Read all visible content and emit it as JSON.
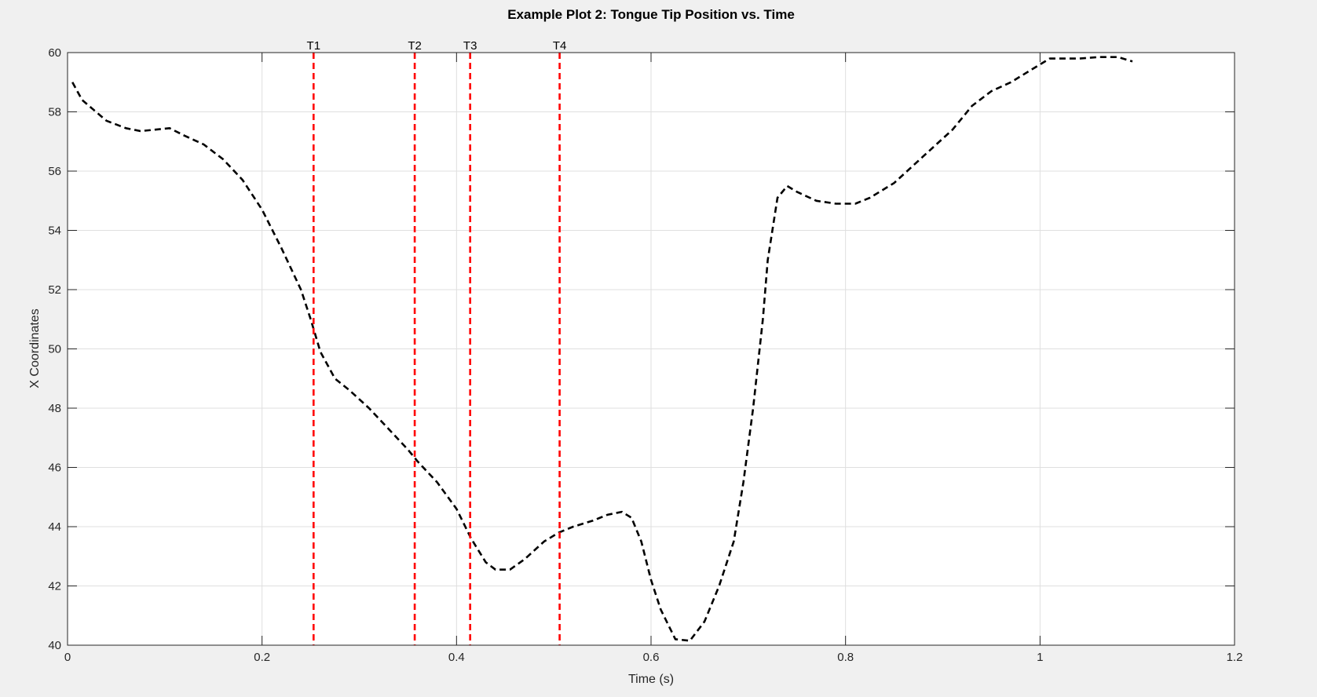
{
  "chart_data": {
    "type": "line",
    "title": "Example Plot 2: Tongue Tip Position vs. Time",
    "xlabel": "Time (s)",
    "ylabel": "X Coordinates",
    "xlim": [
      0,
      1.2
    ],
    "ylim": [
      40,
      60
    ],
    "grid": true,
    "x_ticks": [
      "0",
      "0.2",
      "0.4",
      "0.6",
      "0.8",
      "1",
      "1.2"
    ],
    "y_ticks": [
      "40",
      "42",
      "44",
      "46",
      "48",
      "50",
      "52",
      "54",
      "56",
      "58",
      "60"
    ],
    "series": [
      {
        "line_style": "dashed",
        "color": "#000000",
        "x": [
          0.005,
          0.015,
          0.04,
          0.06,
          0.075,
          0.09,
          0.105,
          0.12,
          0.14,
          0.16,
          0.18,
          0.2,
          0.22,
          0.24,
          0.25,
          0.26,
          0.275,
          0.29,
          0.31,
          0.33,
          0.35,
          0.36,
          0.38,
          0.4,
          0.415,
          0.43,
          0.44,
          0.455,
          0.47,
          0.49,
          0.505,
          0.52,
          0.54,
          0.555,
          0.57,
          0.58,
          0.59,
          0.6,
          0.61,
          0.625,
          0.64,
          0.655,
          0.67,
          0.685,
          0.695,
          0.705,
          0.715,
          0.72,
          0.73,
          0.74,
          0.75,
          0.77,
          0.79,
          0.81,
          0.825,
          0.85,
          0.88,
          0.91,
          0.93,
          0.95,
          0.97,
          0.99,
          1.01,
          1.04,
          1.06,
          1.08,
          1.095
        ],
        "y": [
          59.0,
          58.4,
          57.7,
          57.45,
          57.35,
          57.4,
          57.45,
          57.2,
          56.9,
          56.4,
          55.7,
          54.7,
          53.4,
          52.0,
          51.0,
          49.9,
          49.0,
          48.6,
          48.0,
          47.3,
          46.6,
          46.2,
          45.5,
          44.6,
          43.6,
          42.8,
          42.55,
          42.55,
          42.9,
          43.5,
          43.8,
          44.0,
          44.2,
          44.4,
          44.5,
          44.3,
          43.5,
          42.2,
          41.2,
          40.2,
          40.15,
          40.8,
          42.0,
          43.5,
          45.5,
          48.0,
          51.0,
          53.0,
          55.1,
          55.5,
          55.3,
          55.0,
          54.9,
          54.9,
          55.1,
          55.6,
          56.5,
          57.4,
          58.2,
          58.7,
          59.0,
          59.4,
          59.8,
          59.8,
          59.85,
          59.85,
          59.7
        ]
      }
    ],
    "markers": [
      {
        "label": "T1",
        "x": 0.253,
        "color": "#ff0000",
        "line_style": "dashed"
      },
      {
        "label": "T2",
        "x": 0.357,
        "color": "#ff0000",
        "line_style": "dashed"
      },
      {
        "label": "T3",
        "x": 0.414,
        "color": "#ff0000",
        "line_style": "dashed"
      },
      {
        "label": "T4",
        "x": 0.506,
        "color": "#ff0000",
        "line_style": "dashed"
      }
    ]
  }
}
